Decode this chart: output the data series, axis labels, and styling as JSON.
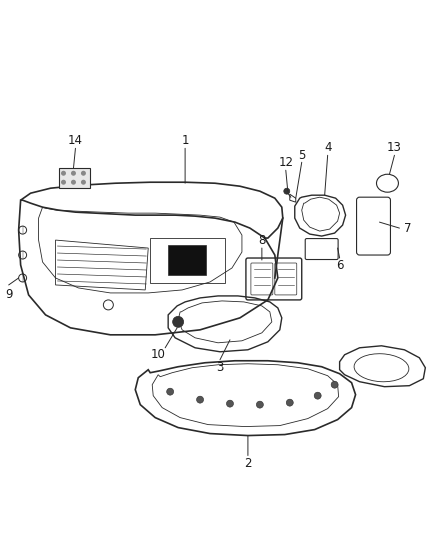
{
  "background_color": "#ffffff",
  "line_color": "#2a2a2a",
  "label_color": "#1a1a1a",
  "figsize": [
    4.38,
    5.33
  ],
  "dpi": 100
}
